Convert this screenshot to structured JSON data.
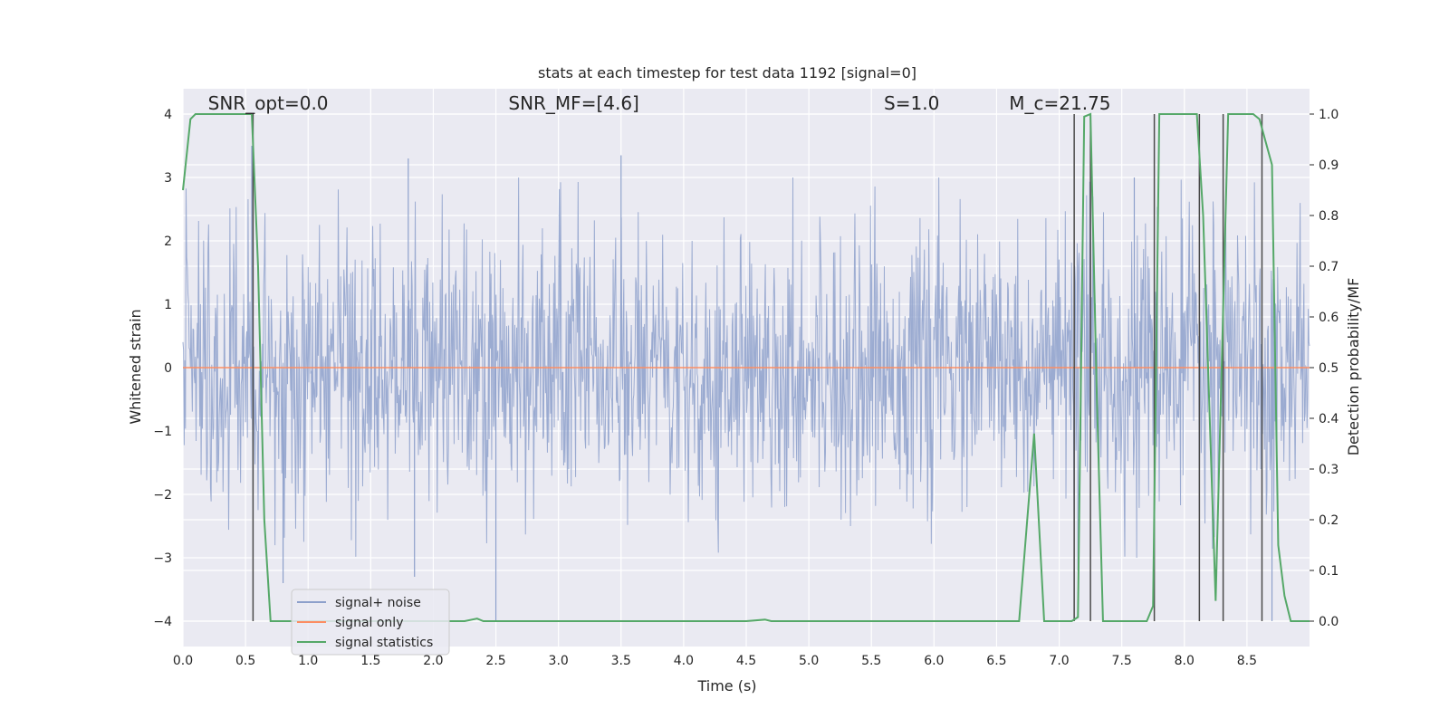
{
  "chart_data": {
    "type": "line",
    "title": "stats at each timestep for test data 1192 [signal=0]",
    "xlabel": "Time (s)",
    "ylabel_left": "Whitened strain",
    "ylabel_right": "Detection probability/MF",
    "xlim": [
      0,
      9.0
    ],
    "ylim_left": [
      -4.4,
      4.4
    ],
    "ylim_right": [
      -0.05,
      1.05
    ],
    "x_ticks": [
      "0.0",
      "0.5",
      "1.0",
      "1.5",
      "2.0",
      "2.5",
      "3.0",
      "3.5",
      "4.0",
      "4.5",
      "5.0",
      "5.5",
      "6.0",
      "6.5",
      "7.0",
      "7.5",
      "8.0",
      "8.5"
    ],
    "y_ticks_left": [
      "−4",
      "−3",
      "−2",
      "−1",
      "0",
      "1",
      "2",
      "3",
      "4"
    ],
    "y_ticks_right": [
      "0.0",
      "0.1",
      "0.2",
      "0.3",
      "0.4",
      "0.5",
      "0.6",
      "0.7",
      "0.8",
      "0.9",
      "1.0"
    ],
    "grid": true,
    "legend_position": "lower-left",
    "annotations": [
      {
        "text": "SNR_opt=0.0",
        "x": 0.2,
        "y": 4.1
      },
      {
        "text": "SNR_MF=[4.6]",
        "x": 2.6,
        "y": 4.1
      },
      {
        "text": "S=1.0",
        "x": 5.6,
        "y": 4.1
      },
      {
        "text": "M_c=21.75",
        "x": 6.6,
        "y": 4.1
      }
    ],
    "series": [
      {
        "name": "signal+ noise",
        "color": "#8da0cb",
        "axis": "left",
        "description_values": "whitened noise, approx range -3.6 to 3.5",
        "spikes": [
          [
            0.55,
            3.5
          ],
          [
            1.8,
            3.3
          ],
          [
            2.5,
            -4.0
          ],
          [
            1.85,
            -3.3
          ],
          [
            0.8,
            -3.4
          ],
          [
            3.5,
            3.35
          ],
          [
            7.6,
            3.0
          ],
          [
            7.25,
            3.5
          ],
          [
            7.15,
            -3.2
          ],
          [
            8.7,
            -4.0
          ]
        ]
      },
      {
        "name": "signal only",
        "color": "#fc8d62",
        "axis": "left",
        "x": [
          0,
          9.0
        ],
        "y": [
          0,
          0
        ]
      },
      {
        "name": "signal statistics",
        "color": "#55a868",
        "axis": "right",
        "x": [
          0.0,
          0.06,
          0.1,
          0.15,
          0.2,
          0.3,
          0.4,
          0.5,
          0.55,
          0.6,
          0.65,
          0.7,
          0.75,
          1.0,
          1.5,
          2.0,
          2.25,
          2.35,
          2.4,
          2.5,
          3.0,
          3.5,
          4.0,
          4.5,
          4.65,
          4.7,
          5.0,
          5.5,
          6.0,
          6.5,
          6.68,
          6.8,
          6.88,
          7.0,
          7.1,
          7.15,
          7.2,
          7.25,
          7.3,
          7.35,
          7.45,
          7.55,
          7.7,
          7.75,
          7.8,
          7.85,
          8.0,
          8.1,
          8.15,
          8.25,
          8.35,
          8.45,
          8.55,
          8.6,
          8.7,
          8.75,
          8.8,
          8.85,
          8.9,
          9.0
        ],
        "y": [
          0.85,
          0.99,
          1.0,
          1.0,
          1.0,
          1.0,
          1.0,
          1.0,
          1.0,
          0.7,
          0.2,
          0.0,
          0.0,
          0.0,
          0.0,
          0.0,
          0.0,
          0.005,
          0.0,
          0.0,
          0.0,
          0.0,
          0.0,
          0.0,
          0.003,
          0.0,
          0.0,
          0.0,
          0.0,
          0.0,
          0.0,
          0.37,
          0.0,
          0.0,
          0.0,
          0.008,
          0.995,
          1.0,
          0.45,
          0.0,
          0.0,
          0.0,
          0.0,
          0.03,
          1.0,
          1.0,
          1.0,
          1.0,
          0.8,
          0.04,
          1.0,
          1.0,
          1.0,
          0.99,
          0.9,
          0.15,
          0.05,
          0.0,
          0.0,
          0.0
        ]
      }
    ],
    "vertical_markers": [
      0.56,
      7.12,
      7.25,
      7.76,
      8.12,
      8.31,
      8.62
    ]
  }
}
